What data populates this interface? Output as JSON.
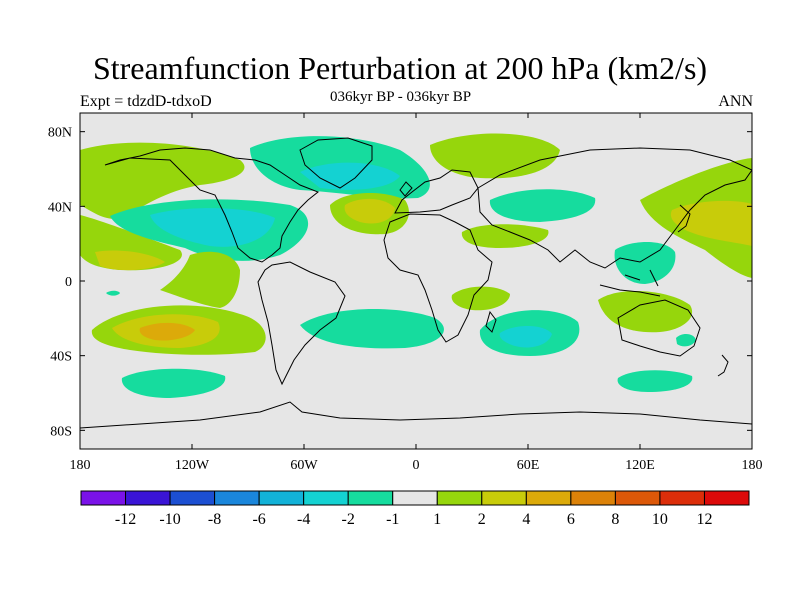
{
  "title": "Streamfunction Perturbation at 200 hPa (km2/s)",
  "subtitle": "036kyr BP - 036kyr BP",
  "left_label": "Expt = tdzdD-tdxoD",
  "right_label": "ANN",
  "map": {
    "projection": "cylindrical-equidistant",
    "lon_range": [
      -180,
      180
    ],
    "lat_range": [
      -90,
      90
    ],
    "background_color": "#e6e6e6",
    "x_ticks": [
      {
        "lon": -180,
        "label": "180"
      },
      {
        "lon": -120,
        "label": "120W"
      },
      {
        "lon": -60,
        "label": "60W"
      },
      {
        "lon": 0,
        "label": "0"
      },
      {
        "lon": 60,
        "label": "60E"
      },
      {
        "lon": 120,
        "label": "120E"
      },
      {
        "lon": 180,
        "label": "180"
      }
    ],
    "y_ticks": [
      {
        "lat": 80,
        "label": "80N"
      },
      {
        "lat": 40,
        "label": "40N"
      },
      {
        "lat": 0,
        "label": "0"
      },
      {
        "lat": -40,
        "label": "40S"
      },
      {
        "lat": -80,
        "label": "80S"
      }
    ]
  },
  "colorbar": {
    "colors": [
      "#7a12e8",
      "#3a14d6",
      "#1c4fd2",
      "#1a86db",
      "#12b2d8",
      "#14d2d2",
      "#16dc9e",
      "#e6e6e6",
      "#96d60c",
      "#c8cc0a",
      "#dcaa0a",
      "#dc8208",
      "#dc5808",
      "#dc2e0a",
      "#dc0a0a"
    ],
    "labels": [
      "-12",
      "-10",
      "-8",
      "-6",
      "-4",
      "-2",
      "-1",
      "1",
      "2",
      "4",
      "6",
      "8",
      "10",
      "12"
    ]
  },
  "chart_data": {
    "type": "heatmap",
    "title": "Streamfunction Perturbation at 200 hPa (km2/s)",
    "subtitle": "036kyr BP - 036kyr BP",
    "units": "km2/s",
    "levels": [
      -12,
      -10,
      -8,
      -6,
      -4,
      -2,
      -1,
      1,
      2,
      4,
      6,
      8,
      10,
      12
    ],
    "regions": [
      {
        "name": "north-atlantic-greenland-low",
        "lon": -50,
        "lat": 62,
        "value": -2,
        "core": -4
      },
      {
        "name": "north-america-low",
        "lon": -110,
        "lat": 30,
        "value": -2,
        "core": -4
      },
      {
        "name": "south-atlantic-low",
        "lon": -30,
        "lat": -30,
        "value": -2
      },
      {
        "name": "south-indian-low",
        "lon": 55,
        "lat": -30,
        "value": -2,
        "core": -4
      },
      {
        "name": "maritime-continent-low",
        "lon": 120,
        "lat": 12,
        "value": -2
      },
      {
        "name": "central-asia-low",
        "lon": 75,
        "lat": 42,
        "value": -2
      },
      {
        "name": "east-australia-low",
        "lon": 150,
        "lat": -30,
        "value": -2
      },
      {
        "name": "southern-ocean-low",
        "lon": 150,
        "lat": -53,
        "value": -2
      },
      {
        "name": "south-pacific-low",
        "lon": -130,
        "lat": -55,
        "value": -2
      },
      {
        "name": "north-pacific-high",
        "lon": -170,
        "lat": 45,
        "value": 2
      },
      {
        "name": "northeast-atlantic-high",
        "lon": -25,
        "lat": 37,
        "value": 4
      },
      {
        "name": "siberian-high",
        "lon": 80,
        "lat": 70,
        "value": 2
      },
      {
        "name": "west-pacific-high",
        "lon": 165,
        "lat": 30,
        "value": 4
      },
      {
        "name": "southeast-pacific-high",
        "lon": -130,
        "lat": -27,
        "value": 4,
        "core": 6
      },
      {
        "name": "east-africa-high",
        "lon": 35,
        "lat": -8,
        "value": 2
      },
      {
        "name": "central-asia-high",
        "lon": 50,
        "lat": 22,
        "value": 2
      }
    ]
  }
}
